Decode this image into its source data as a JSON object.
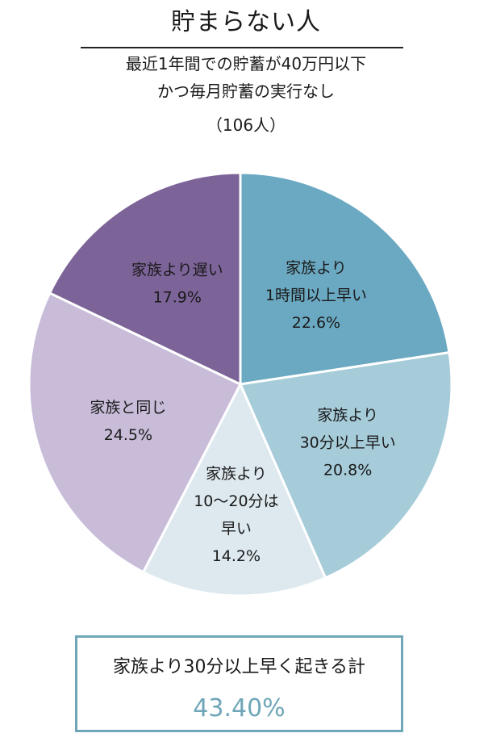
{
  "header": {
    "title": "貯まらない人",
    "subtitle_line1": "最近1年間での貯蓄が40万円以下",
    "subtitle_line2": "かつ毎月貯蓄の実行なし",
    "sample": "（106人）"
  },
  "chart_data": {
    "type": "pie",
    "start": "12 o'clock",
    "direction": "clockwise",
    "slices": [
      {
        "lines": [
          "家族より",
          "1時間以上早い"
        ],
        "value": 22.6,
        "value_label": "22.6%",
        "color": "#6ba9c2"
      },
      {
        "lines": [
          "家族より",
          "30分以上早い"
        ],
        "value": 20.8,
        "value_label": "20.8%",
        "color": "#a6cbd9"
      },
      {
        "lines": [
          "家族より",
          "10〜20分は",
          "早い"
        ],
        "value": 14.2,
        "value_label": "14.2%",
        "color": "#dde9ef"
      },
      {
        "lines": [
          "家族と同じ"
        ],
        "value": 24.5,
        "value_label": "24.5%",
        "color": "#c8bcd9"
      },
      {
        "lines": [
          "家族より遅い"
        ],
        "value": 17.9,
        "value_label": "17.9%",
        "color": "#7c6398"
      }
    ]
  },
  "summary": {
    "label": "家族より30分以上早く起きる計",
    "value": "43.40%",
    "accent_color": "#6fa6b8"
  }
}
